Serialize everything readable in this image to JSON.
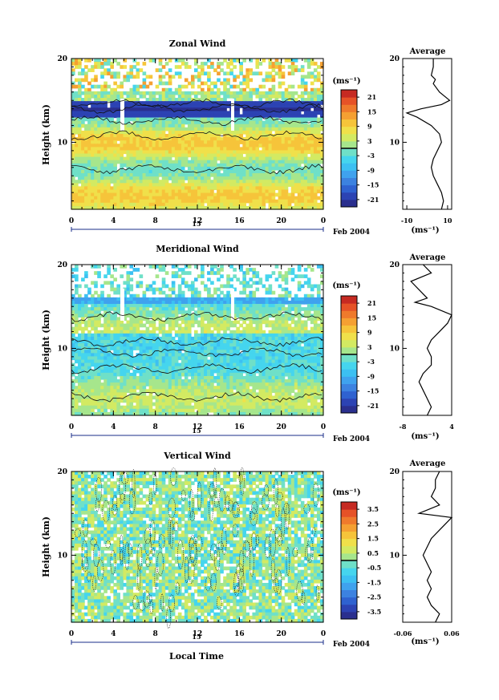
{
  "figure": {
    "xlabel": "Local Time",
    "date_label": "Feb 2004",
    "day_label": "15"
  },
  "chart_data": [
    {
      "type": "heatmap",
      "title": "Zonal Wind",
      "ylabel": "Height (km)",
      "x_ticks": [
        "0",
        "4",
        "8",
        "12",
        "16",
        "20",
        "0"
      ],
      "y_ticks": [
        "10",
        "20"
      ],
      "xlim": [
        0,
        24
      ],
      "ylim": [
        2,
        20
      ],
      "colorbar": {
        "unit": "(ms⁻¹)",
        "ticks": [
          "21",
          "15",
          "9",
          "3",
          "-3",
          "-9",
          "-15",
          "-21"
        ],
        "range": [
          -24,
          24
        ]
      },
      "profile": {
        "title": "Average",
        "xlabel": "(ms⁻¹)",
        "x_ticks": [
          "-10",
          "10"
        ],
        "y_ticks": [
          "10",
          "20"
        ],
        "xlim": [
          -12,
          12
        ],
        "height_km": [
          2,
          3,
          4,
          5,
          6,
          7,
          8,
          9,
          10,
          11,
          12,
          13,
          13.5,
          14,
          14.5,
          15,
          16,
          17,
          17.5,
          18,
          19,
          20
        ],
        "values": [
          7,
          8,
          7,
          5,
          3,
          2,
          3,
          5,
          7,
          6,
          2,
          -5,
          -10,
          -3,
          7,
          11,
          6,
          3,
          4,
          2,
          3,
          3
        ]
      },
      "zero_contour_heights_km": [
        6.8,
        10.8,
        12.6,
        14.0,
        14.6
      ]
    },
    {
      "type": "heatmap",
      "title": "Meridional Wind",
      "ylabel": "Height (km)",
      "x_ticks": [
        "0",
        "4",
        "8",
        "12",
        "16",
        "20",
        "0"
      ],
      "y_ticks": [
        "10",
        "20"
      ],
      "xlim": [
        0,
        24
      ],
      "ylim": [
        2,
        20
      ],
      "colorbar": {
        "unit": "(ms⁻¹)",
        "ticks": [
          "21",
          "15",
          "9",
          "3",
          "-3",
          "-9",
          "-15",
          "-21"
        ],
        "range": [
          -24,
          24
        ]
      },
      "profile": {
        "title": "Average",
        "xlabel": "(ms⁻¹)",
        "x_ticks": [
          "-8",
          "4"
        ],
        "y_ticks": [
          "10",
          "20"
        ],
        "xlim": [
          -8,
          4
        ],
        "height_km": [
          2,
          3,
          4,
          5,
          6,
          7,
          8,
          9,
          10,
          11,
          12,
          13,
          14,
          15,
          15.5,
          16,
          17,
          18,
          19,
          20
        ],
        "values": [
          -2,
          -1,
          -2,
          -3,
          -4,
          -3,
          -1,
          -1,
          -2,
          -1,
          1,
          3,
          4,
          -1,
          -5,
          -2,
          -4,
          -6,
          -1,
          -3
        ]
      },
      "zero_contour_heights_km": [
        4.2,
        7.6,
        9.5,
        10.8,
        13.8
      ]
    },
    {
      "type": "heatmap",
      "title": "Vertical Wind",
      "ylabel": "Height (km)",
      "x_ticks": [
        "0",
        "4",
        "8",
        "12",
        "16",
        "20",
        "0"
      ],
      "y_ticks": [
        "10",
        "20"
      ],
      "xlim": [
        0,
        24
      ],
      "ylim": [
        2,
        20
      ],
      "colorbar": {
        "unit": "(ms⁻¹)",
        "ticks": [
          "3.5",
          "2.5",
          "1.5",
          "0.5",
          "-0.5",
          "-1.5",
          "-2.5",
          "-3.5"
        ],
        "range": [
          -4,
          4
        ]
      },
      "profile": {
        "title": "Average",
        "xlabel": "(ms⁻¹)",
        "x_ticks": [
          "-0.06",
          "0.06"
        ],
        "y_ticks": [
          "10",
          "20"
        ],
        "xlim": [
          -0.06,
          0.06
        ],
        "height_km": [
          2,
          3,
          4,
          5,
          6,
          7,
          8,
          9,
          10,
          11,
          12,
          13,
          14,
          14.5,
          15,
          16,
          17,
          18,
          19,
          20
        ],
        "values": [
          0.02,
          0.03,
          0.01,
          0.0,
          0.01,
          0.0,
          0.01,
          0.0,
          -0.01,
          0.0,
          0.01,
          0.03,
          0.05,
          0.06,
          -0.02,
          0.03,
          0.01,
          0.02,
          0.02,
          0.03
        ]
      },
      "zero_contour_heights_km": []
    }
  ]
}
